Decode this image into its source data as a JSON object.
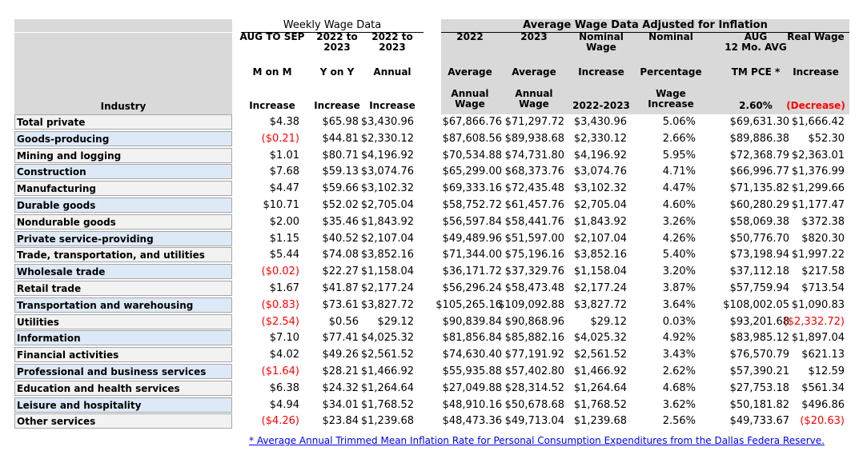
{
  "groups": {
    "weekly": "Weekly Wage Data",
    "avg": "Average Wage Data Adjusted for Inflation"
  },
  "industry_header": "Industry",
  "columns": [
    {
      "key": "mom",
      "lines": [
        "AUG TO SEP",
        "",
        "M on M",
        "",
        "",
        "Increase"
      ]
    },
    {
      "key": "yoy",
      "lines": [
        "2022 to",
        "2023",
        "Y on Y",
        "",
        "",
        "Increase"
      ]
    },
    {
      "key": "ann",
      "lines": [
        "2022 to",
        "2023",
        "Annual",
        "",
        "",
        "Increase"
      ]
    },
    {
      "key": "a22",
      "lines": [
        "2022",
        "",
        "Average",
        "Annual",
        "Wage",
        ""
      ]
    },
    {
      "key": "a23",
      "lines": [
        "2023",
        "",
        "Average",
        "Annual",
        "Wage",
        ""
      ]
    },
    {
      "key": "nwi",
      "lines": [
        "Nominal",
        "Wage",
        "Increase",
        "",
        "",
        "2022-2023"
      ]
    },
    {
      "key": "npct",
      "lines": [
        "Nominal",
        "",
        "Percentage",
        "Wage",
        "Increase",
        ""
      ]
    },
    {
      "key": "pce",
      "lines": [
        "AUG",
        "12 Mo. AVG",
        "TM PCE *",
        "",
        "",
        "2.60%"
      ]
    },
    {
      "key": "real",
      "lines": [
        "Real Wage",
        "",
        "Increase",
        "",
        "",
        "(Decrease)"
      ]
    }
  ],
  "rows": [
    {
      "industry": "Total private",
      "mom": "$4.38",
      "yoy": "$65.98",
      "ann": "$3,430.96",
      "a22": "$67,866.76",
      "a23": "$71,297.72",
      "nwi": "$3,430.96",
      "npct": "5.06%",
      "pce": "$69,631.30",
      "real": "$1,666.42"
    },
    {
      "industry": "Goods-producing",
      "mom": "($0.21)",
      "yoy": "$44.81",
      "ann": "$2,330.12",
      "a22": "$87,608.56",
      "a23": "$89,938.68",
      "nwi": "$2,330.12",
      "npct": "2.66%",
      "pce": "$89,886.38",
      "real": "$52.30"
    },
    {
      "industry": "Mining and logging",
      "mom": "$1.01",
      "yoy": "$80.71",
      "ann": "$4,196.92",
      "a22": "$70,534.88",
      "a23": "$74,731.80",
      "nwi": "$4,196.92",
      "npct": "5.95%",
      "pce": "$72,368.79",
      "real": "$2,363.01"
    },
    {
      "industry": "Construction",
      "mom": "$7.68",
      "yoy": "$59.13",
      "ann": "$3,074.76",
      "a22": "$65,299.00",
      "a23": "$68,373.76",
      "nwi": "$3,074.76",
      "npct": "4.71%",
      "pce": "$66,996.77",
      "real": "$1,376.99"
    },
    {
      "industry": "Manufacturing",
      "mom": "$4.47",
      "yoy": "$59.66",
      "ann": "$3,102.32",
      "a22": "$69,333.16",
      "a23": "$72,435.48",
      "nwi": "$3,102.32",
      "npct": "4.47%",
      "pce": "$71,135.82",
      "real": "$1,299.66"
    },
    {
      "industry": "Durable goods",
      "mom": "$10.71",
      "yoy": "$52.02",
      "ann": "$2,705.04",
      "a22": "$58,752.72",
      "a23": "$61,457.76",
      "nwi": "$2,705.04",
      "npct": "4.60%",
      "pce": "$60,280.29",
      "real": "$1,177.47"
    },
    {
      "industry": "Nondurable goods",
      "mom": "$2.00",
      "yoy": "$35.46",
      "ann": "$1,843.92",
      "a22": "$56,597.84",
      "a23": "$58,441.76",
      "nwi": "$1,843.92",
      "npct": "3.26%",
      "pce": "$58,069.38",
      "real": "$372.38"
    },
    {
      "industry": "Private service-providing",
      "mom": "$1.15",
      "yoy": "$40.52",
      "ann": "$2,107.04",
      "a22": "$49,489.96",
      "a23": "$51,597.00",
      "nwi": "$2,107.04",
      "npct": "4.26%",
      "pce": "$50,776.70",
      "real": "$820.30"
    },
    {
      "industry": "Trade, transportation, and utilities",
      "mom": "$5.44",
      "yoy": "$74.08",
      "ann": "$3,852.16",
      "a22": "$71,344.00",
      "a23": "$75,196.16",
      "nwi": "$3,852.16",
      "npct": "5.40%",
      "pce": "$73,198.94",
      "real": "$1,997.22"
    },
    {
      "industry": "Wholesale trade",
      "mom": "($0.02)",
      "yoy": "$22.27",
      "ann": "$1,158.04",
      "a22": "$36,171.72",
      "a23": "$37,329.76",
      "nwi": "$1,158.04",
      "npct": "3.20%",
      "pce": "$37,112.18",
      "real": "$217.58"
    },
    {
      "industry": "Retail trade",
      "mom": "$1.67",
      "yoy": "$41.87",
      "ann": "$2,177.24",
      "a22": "$56,296.24",
      "a23": "$58,473.48",
      "nwi": "$2,177.24",
      "npct": "3.87%",
      "pce": "$57,759.94",
      "real": "$713.54"
    },
    {
      "industry": "Transportation and warehousing",
      "mom": "($0.83)",
      "yoy": "$73.61",
      "ann": "$3,827.72",
      "a22": "$105,265.16",
      "a23": "$109,092.88",
      "nwi": "$3,827.72",
      "npct": "3.64%",
      "pce": "$108,002.05",
      "real": "$1,090.83"
    },
    {
      "industry": "Utilities",
      "mom": "($2.54)",
      "yoy": "$0.56",
      "ann": "$29.12",
      "a22": "$90,839.84",
      "a23": "$90,868.96",
      "nwi": "$29.12",
      "npct": "0.03%",
      "pce": "$93,201.68",
      "real": "($2,332.72)"
    },
    {
      "industry": "Information",
      "mom": "$7.10",
      "yoy": "$77.41",
      "ann": "$4,025.32",
      "a22": "$81,856.84",
      "a23": "$85,882.16",
      "nwi": "$4,025.32",
      "npct": "4.92%",
      "pce": "$83,985.12",
      "real": "$1,897.04"
    },
    {
      "industry": "Financial activities",
      "mom": "$4.02",
      "yoy": "$49.26",
      "ann": "$2,561.52",
      "a22": "$74,630.40",
      "a23": "$77,191.92",
      "nwi": "$2,561.52",
      "npct": "3.43%",
      "pce": "$76,570.79",
      "real": "$621.13"
    },
    {
      "industry": "Professional and business services",
      "mom": "($1.64)",
      "yoy": "$28.21",
      "ann": "$1,466.92",
      "a22": "$55,935.88",
      "a23": "$57,402.80",
      "nwi": "$1,466.92",
      "npct": "2.62%",
      "pce": "$57,390.21",
      "real": "$12.59"
    },
    {
      "industry": "Education and health services",
      "mom": "$6.38",
      "yoy": "$24.32",
      "ann": "$1,264.64",
      "a22": "$27,049.88",
      "a23": "$28,314.52",
      "nwi": "$1,264.64",
      "npct": "4.68%",
      "pce": "$27,753.18",
      "real": "$561.34"
    },
    {
      "industry": "Leisure and hospitality",
      "mom": "$4.94",
      "yoy": "$34.01",
      "ann": "$1,768.52",
      "a22": "$48,910.16",
      "a23": "$50,678.68",
      "nwi": "$1,768.52",
      "npct": "3.62%",
      "pce": "$50,181.82",
      "real": "$496.86"
    },
    {
      "industry": "Other services",
      "mom": "($4.26)",
      "yoy": "$23.84",
      "ann": "$1,239.68",
      "a22": "$48,473.36",
      "a23": "$49,713.04",
      "nwi": "$1,239.68",
      "npct": "2.56%",
      "pce": "$49,733.67",
      "real": "($20.63)"
    }
  ],
  "footnote": "* Average Annual Trimmed Mean Inflation Rate for Personal Consumption Expenditures from the Dallas Federa Reserve."
}
